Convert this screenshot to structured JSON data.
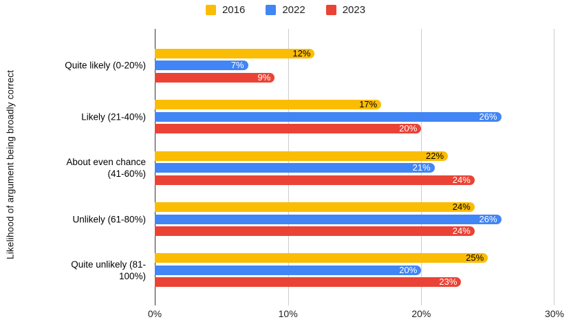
{
  "legend": [
    {
      "label": "2016",
      "color": "#FBBC04"
    },
    {
      "label": "2022",
      "color": "#4285F4"
    },
    {
      "label": "2023",
      "color": "#EA4335"
    }
  ],
  "x_axis": {
    "ticks": [
      "0%",
      "10%",
      "20%",
      "30%"
    ]
  },
  "chart_data": {
    "type": "bar",
    "orientation": "horizontal",
    "title": "",
    "xlabel": "",
    "ylabel": "Likelihood of argument being broadly correct",
    "xlim": [
      0,
      30
    ],
    "grid": true,
    "legend_position": "top",
    "categories": [
      "Quite likely (0-20%)",
      "Likely (21-40%)",
      "About even chance (41-60%)",
      "Unlikely (61-80%)",
      "Quite unlikely (81-100%)"
    ],
    "category_lines": [
      [
        "Quite likely (0-20%)"
      ],
      [
        "Likely (21-40%)"
      ],
      [
        "About even chance",
        "(41-60%)"
      ],
      [
        "Unlikely (61-80%)"
      ],
      [
        "Quite unlikely (81-",
        "100%)"
      ]
    ],
    "series": [
      {
        "name": "2016",
        "color": "#FBBC04",
        "label_color": "#000000",
        "values": [
          12,
          17,
          22,
          24,
          25
        ],
        "labels": [
          "12%",
          "17%",
          "22%",
          "24%",
          "25%"
        ]
      },
      {
        "name": "2022",
        "color": "#4285F4",
        "label_color": "#ffffff",
        "values": [
          7,
          26,
          21,
          26,
          20
        ],
        "labels": [
          "7%",
          "26%",
          "21%",
          "26%",
          "20%"
        ]
      },
      {
        "name": "2023",
        "color": "#EA4335",
        "label_color": "#ffffff",
        "values": [
          9,
          20,
          24,
          24,
          23
        ],
        "labels": [
          "9%",
          "20%",
          "24%",
          "24%",
          "23%"
        ]
      }
    ]
  }
}
